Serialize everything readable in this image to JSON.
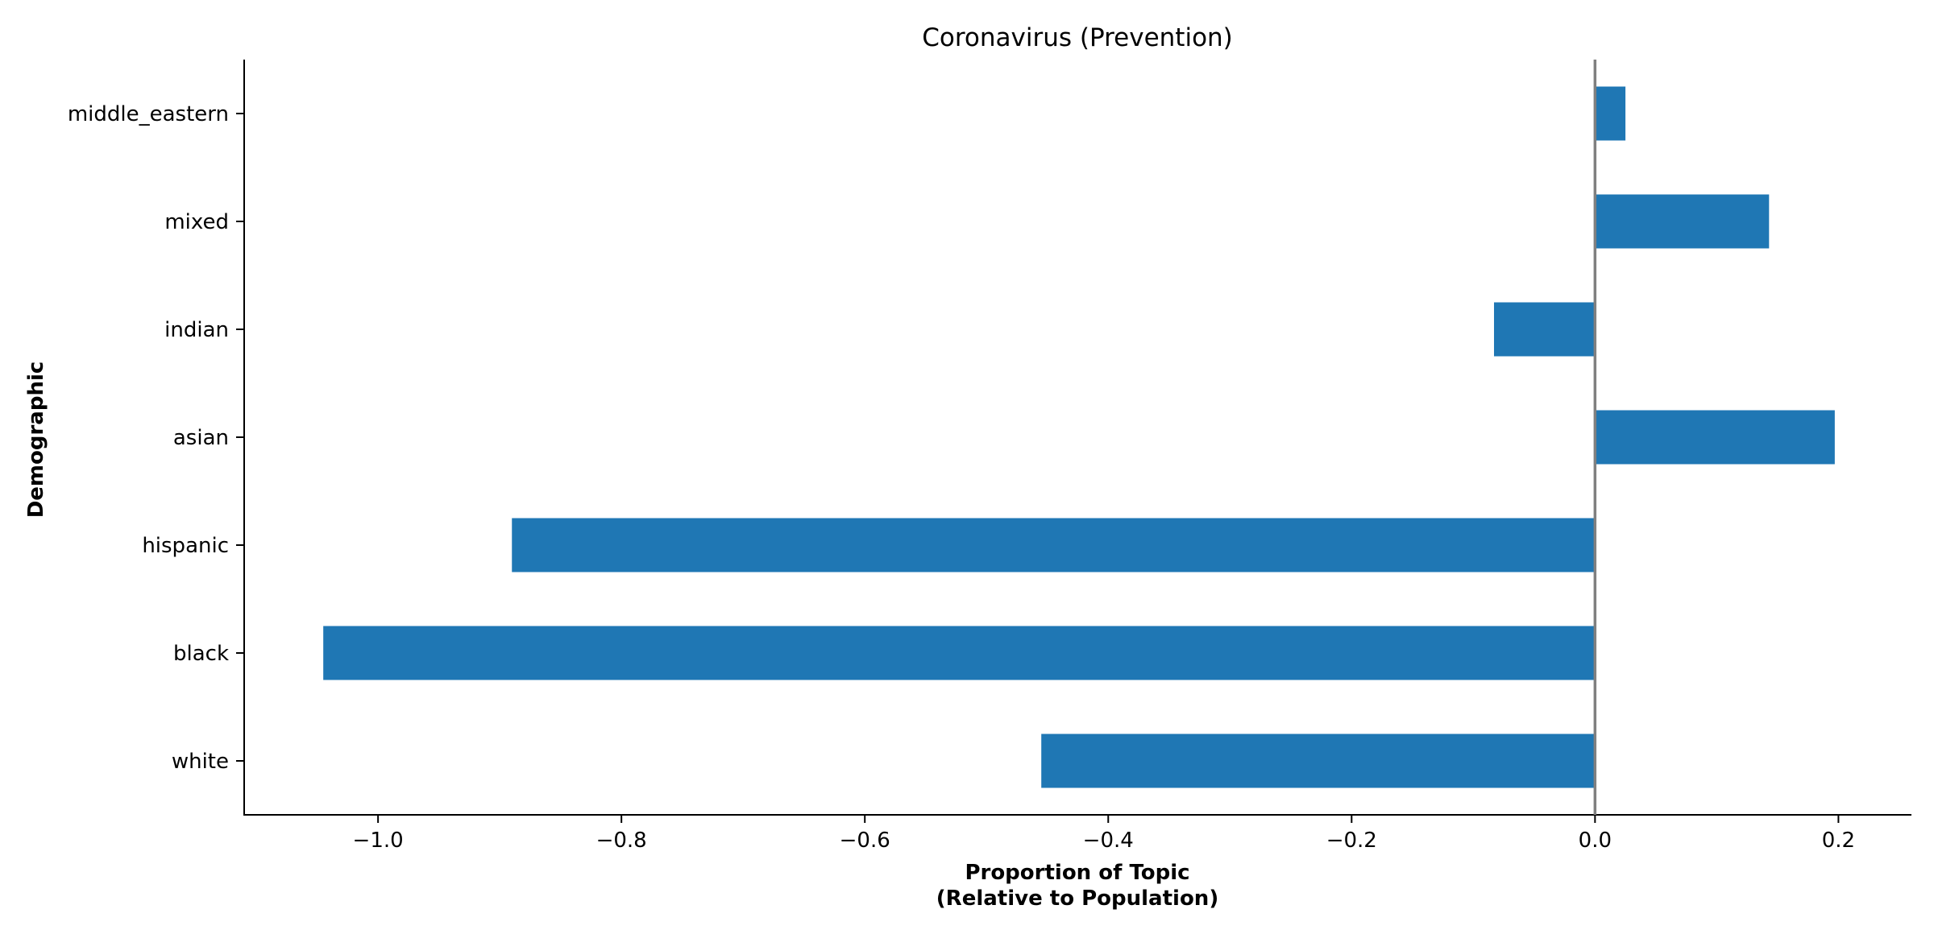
{
  "chart_data": {
    "type": "bar",
    "orientation": "horizontal",
    "title": "Coronavirus (Prevention)",
    "xlabel": [
      "Proportion of Topic",
      "(Relative to Population)"
    ],
    "ylabel": "Demographic",
    "categories": [
      "white",
      "black",
      "hispanic",
      "asian",
      "indian",
      "mixed",
      "middle_eastern"
    ],
    "values": [
      -0.455,
      -1.045,
      -0.89,
      0.197,
      -0.083,
      0.143,
      0.025
    ],
    "xlim": [
      -1.11,
      0.26
    ],
    "xticks": [
      -1.0,
      -0.8,
      -0.6,
      -0.4,
      -0.2,
      0.0,
      0.2
    ],
    "xtick_labels": [
      "−1.0",
      "−0.8",
      "−0.6",
      "−0.4",
      "−0.2",
      "0.0",
      "0.2"
    ],
    "bar_color": "#1f77b4",
    "zero_line_color": "#808080",
    "grid": false,
    "legend": "none"
  }
}
